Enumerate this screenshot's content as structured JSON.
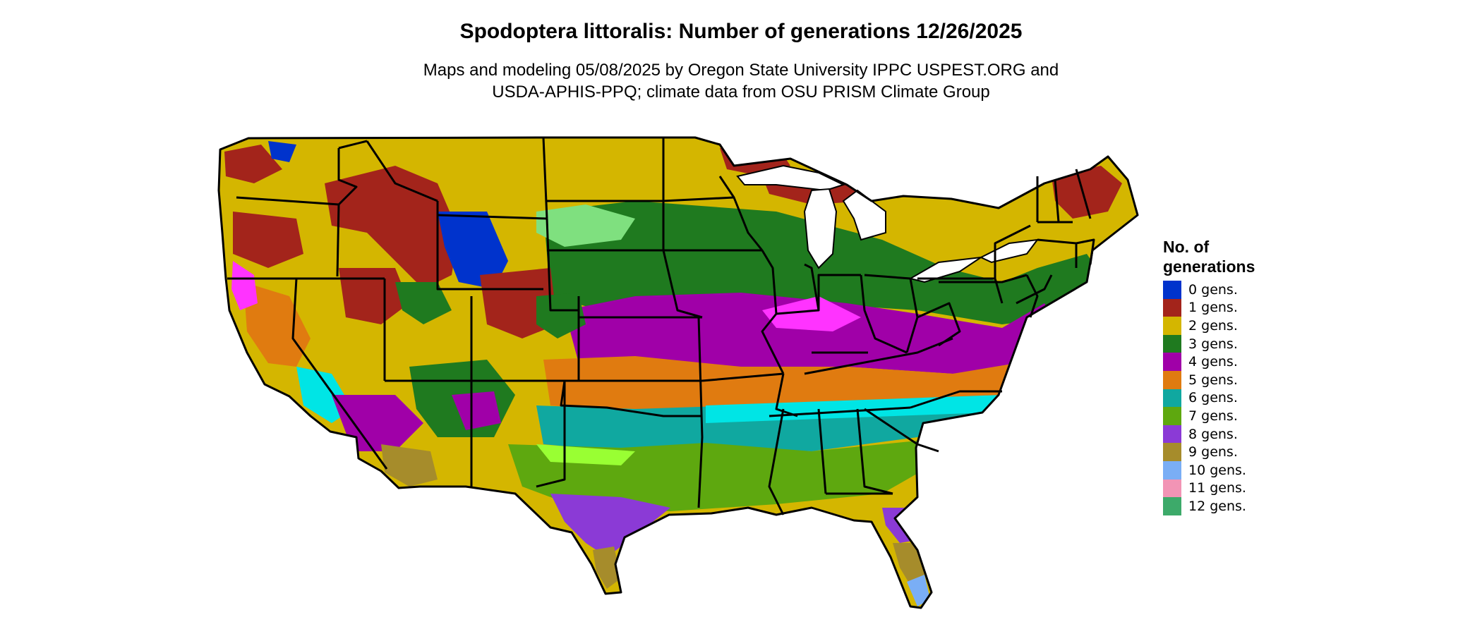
{
  "figure": {
    "title": "Spodoptera littoralis: Number of generations 12/26/2025",
    "subtitle_lines": [
      "Maps and modeling 05/08/2025 by Oregon State University IPPC USPEST.ORG and",
      "USDA-APHIS-PPQ; climate data from OSU PRISM Climate Group"
    ]
  },
  "legend": {
    "title_lines": [
      "No. of",
      "generations"
    ],
    "items": [
      {
        "label": "0 gens.",
        "color": "#0033cc"
      },
      {
        "label": "1 gens.",
        "color": "#a3241b"
      },
      {
        "label": "2 gens.",
        "color": "#d4b600"
      },
      {
        "label": "3 gens.",
        "color": "#1f7a1f"
      },
      {
        "label": "4 gens.",
        "color": "#a000a8"
      },
      {
        "label": "5 gens.",
        "color": "#e07b10"
      },
      {
        "label": "6 gens.",
        "color": "#10a8a0"
      },
      {
        "label": "7 gens.",
        "color": "#5ea80f"
      },
      {
        "label": "8 gens.",
        "color": "#8b3ad6"
      },
      {
        "label": "9 gens.",
        "color": "#a68c2b"
      },
      {
        "label": "10 gens.",
        "color": "#7aaef5"
      },
      {
        "label": "11 gens.",
        "color": "#f294b5"
      },
      {
        "label": "12 gens.",
        "color": "#3daa6a"
      }
    ]
  }
}
